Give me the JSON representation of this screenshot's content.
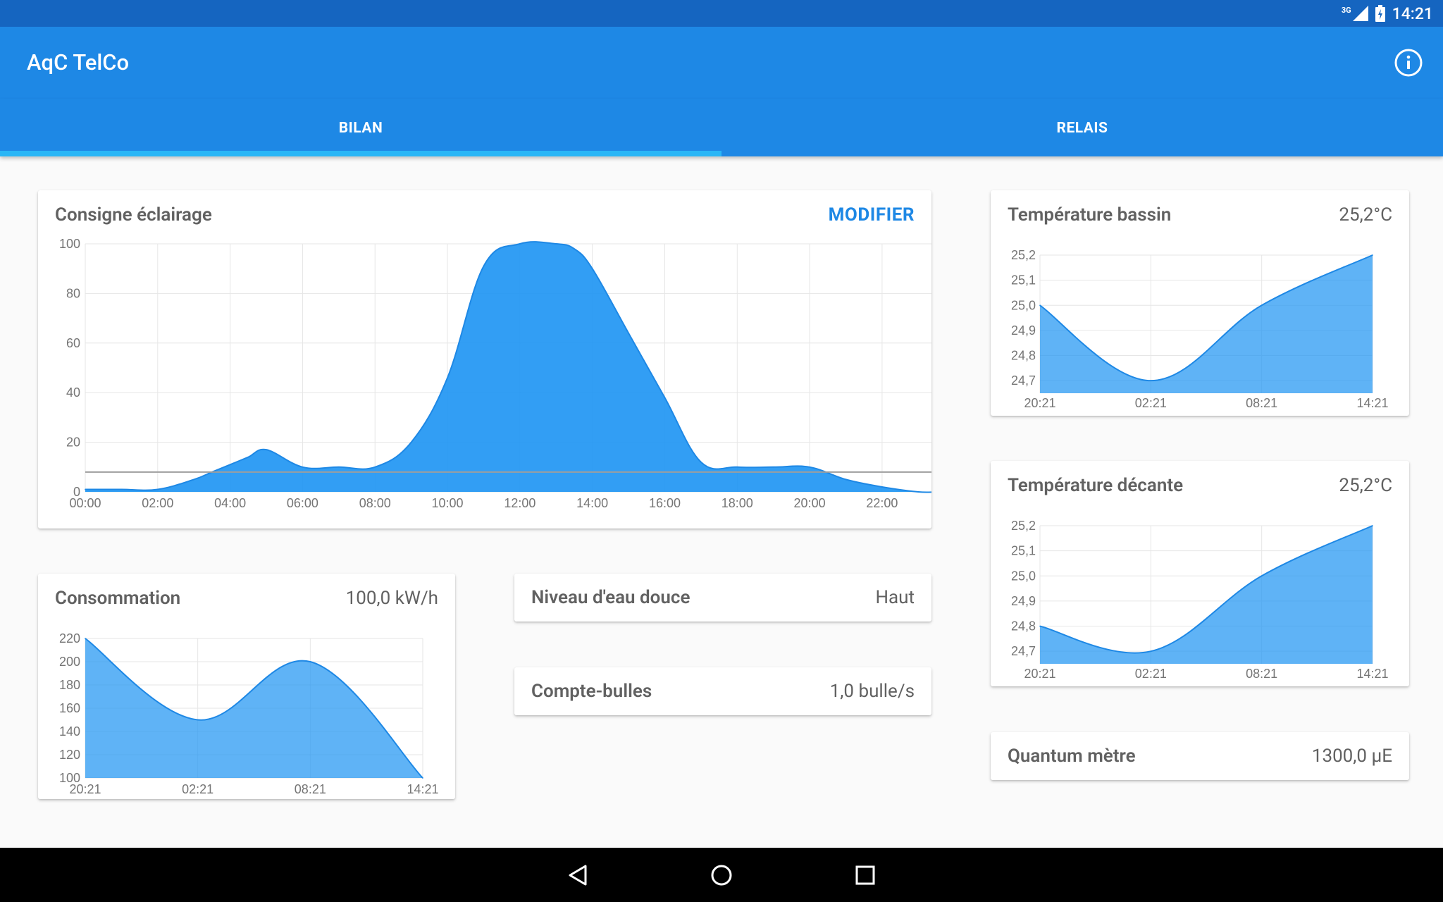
{
  "status_bar": {
    "network": "3G",
    "time": "14:21"
  },
  "app_bar": {
    "title": "AqC TelCo",
    "info_icon": "info-icon"
  },
  "tabs": [
    {
      "label": "BILAN",
      "selected": true
    },
    {
      "label": "RELAIS",
      "selected": false
    }
  ],
  "cards": {
    "consigne": {
      "title": "Consigne éclairage",
      "action": "MODIFIER"
    },
    "consommation": {
      "title": "Consommation",
      "value": "100,0 kW/h"
    },
    "niveau": {
      "title": "Niveau d'eau douce",
      "value": "Haut"
    },
    "bulles": {
      "title": "Compte-bulles",
      "value": "1,0 bulle/s"
    },
    "temp_bassin": {
      "title": "Température bassin",
      "value": "25,2°C"
    },
    "temp_decante": {
      "title": "Température décante",
      "value": "25,2°C"
    },
    "quantum": {
      "title": "Quantum mètre",
      "value": "1300,0 µE"
    }
  },
  "colors": {
    "status_bar": "#1565c0",
    "app_bar": "#1e88e5",
    "tab_indicator": "#29b6f6",
    "chart_fill": "#2196f3",
    "accent": "#1e88e5"
  },
  "nav_bar": {
    "icons": [
      "back-icon",
      "home-icon",
      "recents-icon"
    ]
  },
  "chart_data": [
    {
      "id": "consigne",
      "type": "area",
      "x_ticks": [
        "00:00",
        "02:00",
        "04:00",
        "06:00",
        "08:00",
        "10:00",
        "12:00",
        "14:00",
        "16:00",
        "18:00",
        "20:00",
        "22:00"
      ],
      "x": [
        0,
        1,
        2,
        3,
        3.5,
        4,
        4.5,
        5,
        6,
        7,
        8,
        9,
        10,
        11,
        12,
        13,
        13.5,
        14,
        15,
        16,
        17,
        18,
        19,
        20,
        21,
        22,
        23,
        23.5
      ],
      "y": [
        1,
        1,
        1,
        5,
        8,
        11,
        14,
        17,
        10,
        10,
        10,
        20,
        46,
        91,
        100,
        100,
        98,
        90,
        64,
        38,
        12,
        10,
        10,
        10,
        5,
        2,
        0,
        0
      ],
      "ylim": [
        0,
        100
      ],
      "y_ticks": [
        0,
        20,
        40,
        60,
        80,
        100
      ],
      "reference_line": 8,
      "grid": true
    },
    {
      "id": "consommation",
      "type": "area",
      "x_ticks": [
        "20:21",
        "02:21",
        "08:21",
        "14:21"
      ],
      "x": [
        0,
        6,
        12,
        18
      ],
      "y": [
        220,
        150,
        200,
        100
      ],
      "ylim": [
        100,
        220
      ],
      "y_ticks": [
        100,
        120,
        140,
        160,
        180,
        200,
        220
      ],
      "grid": true
    },
    {
      "id": "temp_bassin",
      "type": "area",
      "x_ticks": [
        "20:21",
        "02:21",
        "08:21",
        "14:21"
      ],
      "x": [
        0,
        6,
        12,
        18
      ],
      "y": [
        25.0,
        24.7,
        25.0,
        25.2
      ],
      "ylim": [
        24.65,
        25.2
      ],
      "y_ticks": [
        "24,7",
        "24,8",
        "24,9",
        "25,0",
        "25,1",
        "25,2"
      ],
      "grid": true
    },
    {
      "id": "temp_decante",
      "type": "area",
      "x_ticks": [
        "20:21",
        "02:21",
        "08:21",
        "14:21"
      ],
      "x": [
        0,
        6,
        12,
        18
      ],
      "y": [
        24.8,
        24.7,
        25.0,
        25.2
      ],
      "ylim": [
        24.65,
        25.2
      ],
      "y_ticks": [
        "24,7",
        "24,8",
        "24,9",
        "25,0",
        "25,1",
        "25,2"
      ],
      "grid": true
    }
  ]
}
